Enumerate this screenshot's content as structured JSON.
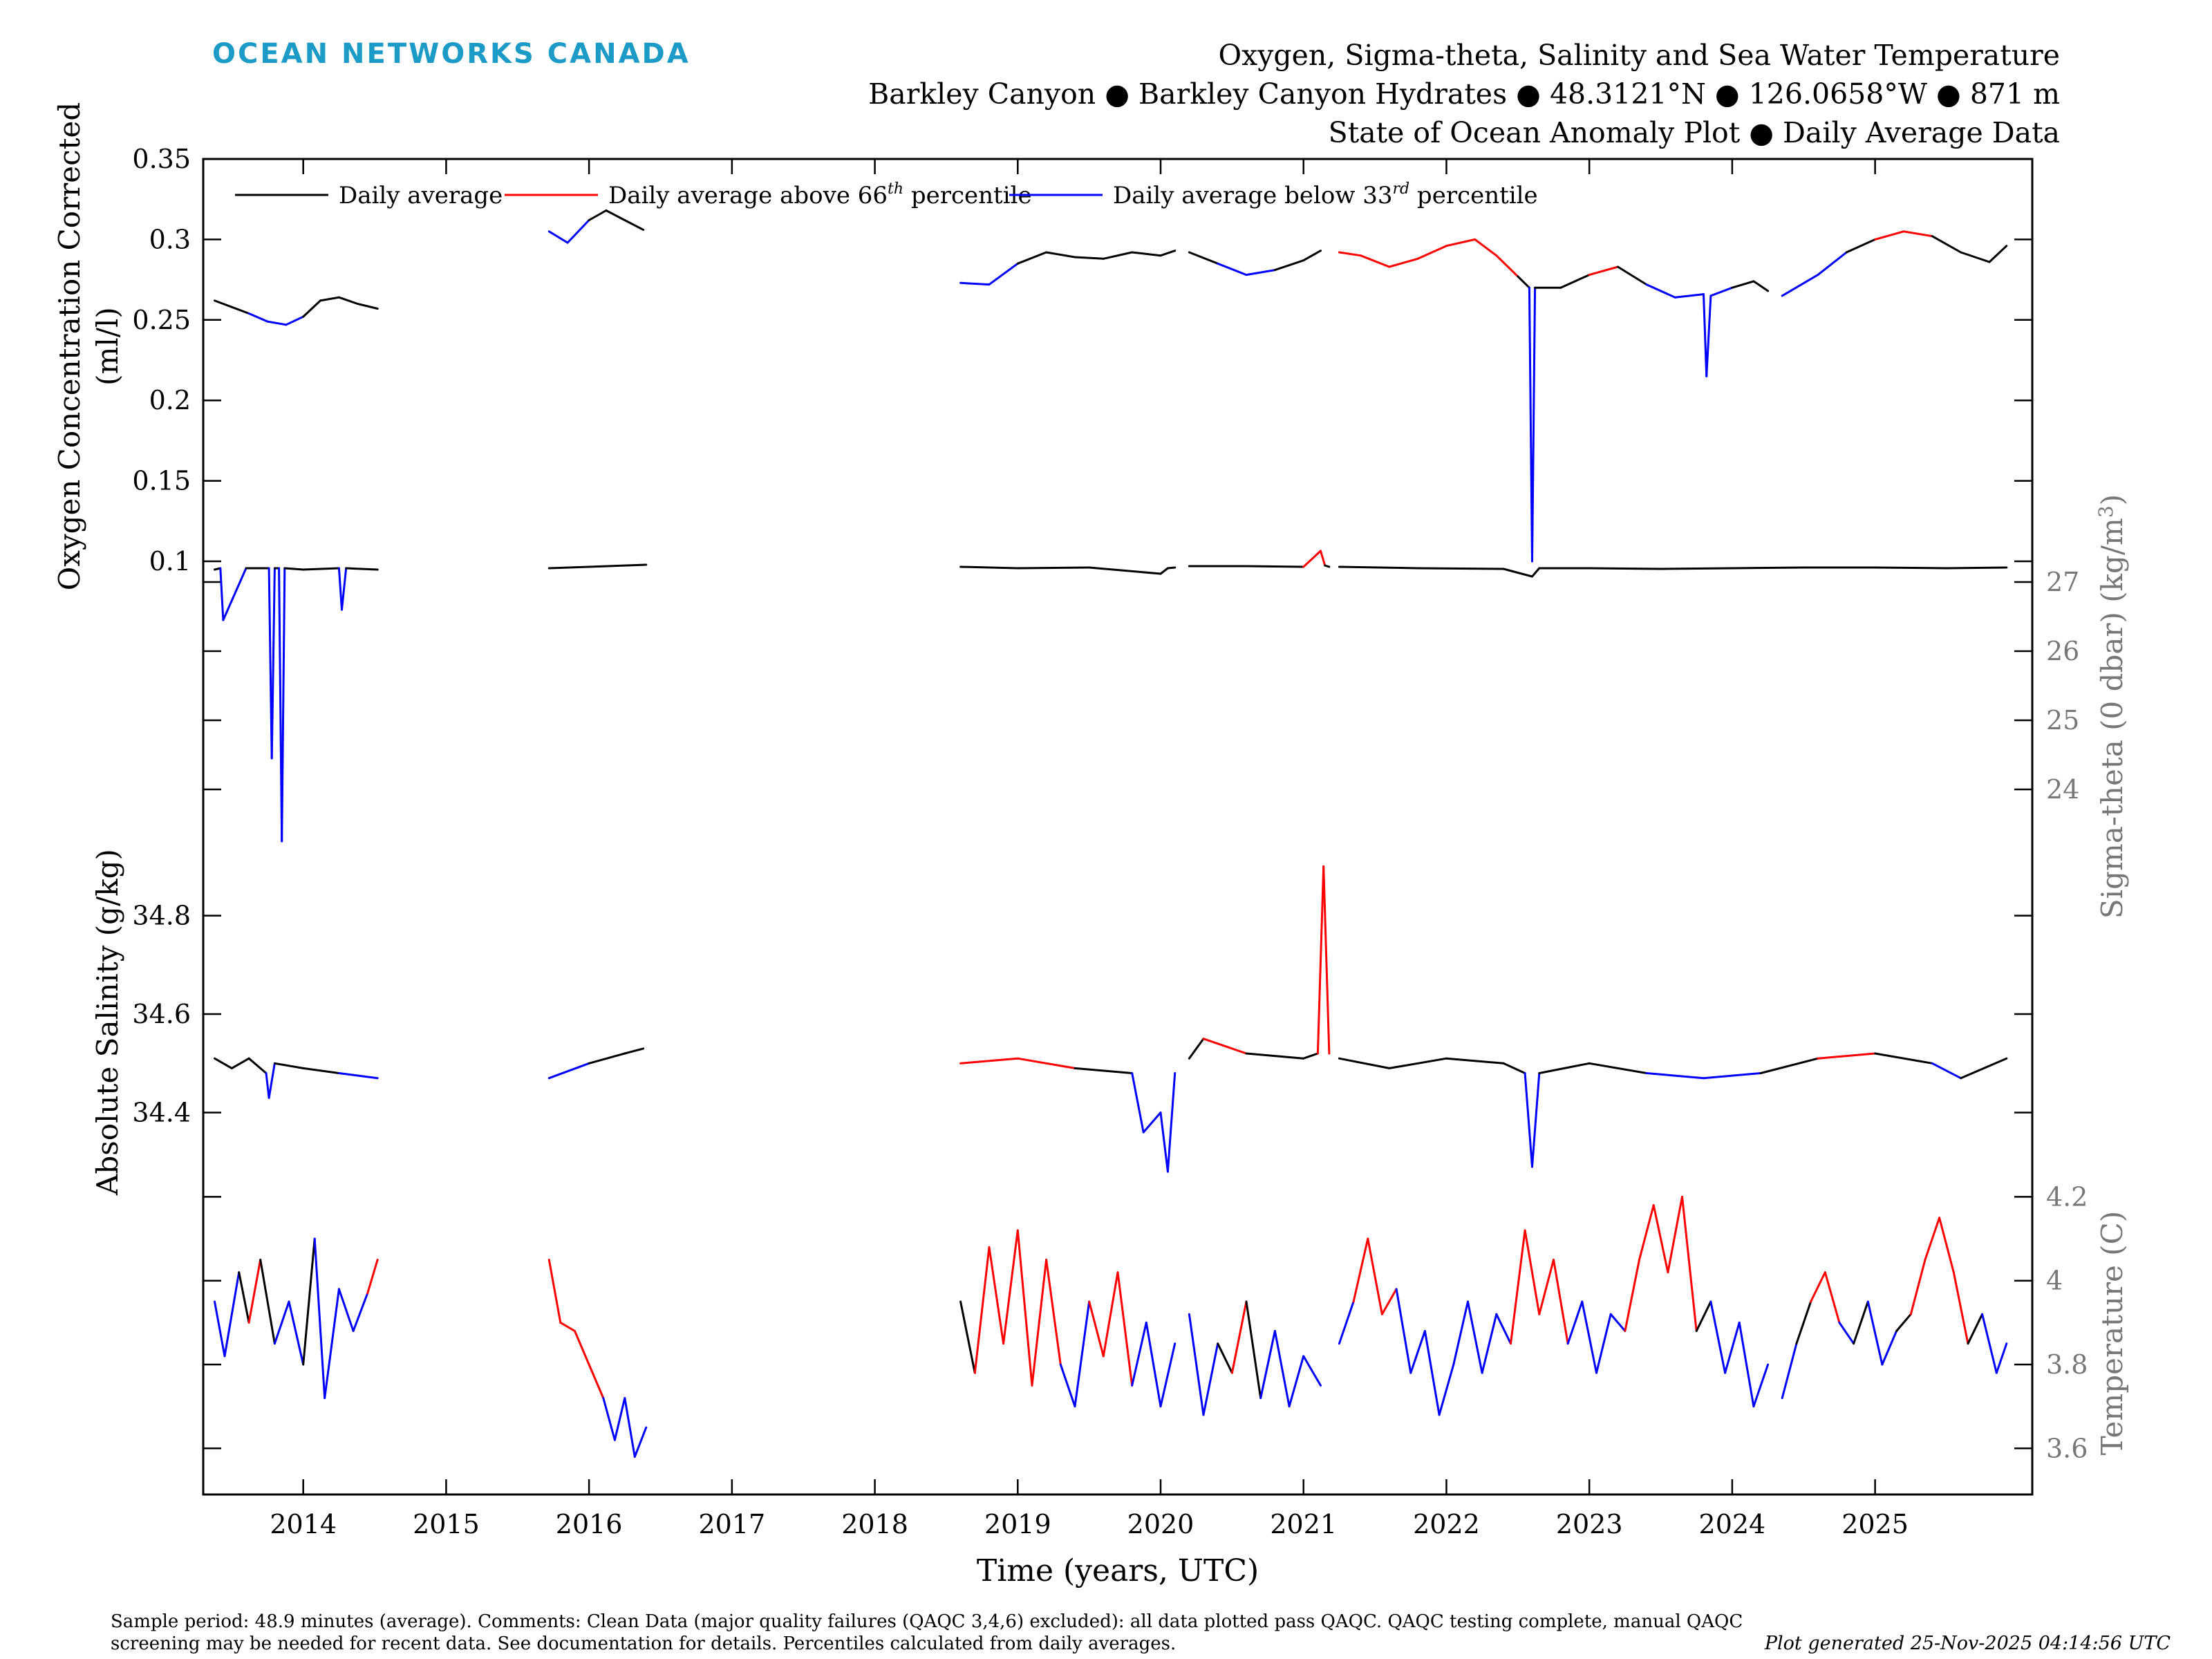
{
  "header": {
    "logo_text": "OCEAN NETWORKS CANADA",
    "title_lines": [
      "Oxygen, Sigma-theta, Salinity and Sea Water Temperature",
      "Barkley Canyon ● Barkley Canyon Hydrates ● 48.3121°N ● 126.0658°W ● 871 m",
      "State of Ocean Anomaly Plot ● Daily Average Data"
    ]
  },
  "footer": {
    "comments": "Sample period: 48.9 minutes (average). Comments: Clean Data (major quality failures (QAQC 3,4,6) excluded): all data plotted pass QAQC. QAQC testing complete, manual QAQC screening may be needed for recent data. See documentation for details. Percentiles calculated from daily averages.",
    "generated": "Plot generated 25-Nov-2025 04:14:56 UTC"
  },
  "colors": {
    "daily": "#000000",
    "above": "#ff0000",
    "below": "#0000ff",
    "axis_gray": "#777777",
    "logo": "#1c9bc7"
  },
  "chart_data": {
    "type": "line",
    "xlabel": "Time (years, UTC)",
    "x_ticks": [
      "2014",
      "2015",
      "2016",
      "2017",
      "2018",
      "2019",
      "2020",
      "2021",
      "2022",
      "2023",
      "2024",
      "2025"
    ],
    "xlim": [
      2013.3,
      2026.1
    ],
    "legend": {
      "placement": "top-left",
      "entries": [
        {
          "series": "daily",
          "text": "Daily average"
        },
        {
          "series": "above",
          "text": "Daily average above 66",
          "sup": "th",
          "after": " percentile"
        },
        {
          "series": "below",
          "text": "Daily average below 33",
          "sup": "rd",
          "after": " percentile"
        }
      ]
    },
    "panels": [
      {
        "id": "oxygen",
        "ylabel_lines": [
          "Oxygen Concentration Corrected",
          "(ml/l)"
        ],
        "label_side": "left",
        "ticks": [
          "0.1",
          "0.15",
          "0.2",
          "0.25",
          "0.3",
          "0.35"
        ],
        "ylim": [
          0.1,
          0.35
        ],
        "segments": [
          {
            "x": [
              2013.38,
              2013.5,
              2013.62,
              2013.75,
              2013.88,
              2014.0,
              2014.12,
              2014.25,
              2014.38,
              2014.52
            ],
            "y": [
              0.262,
              0.258,
              0.254,
              0.249,
              0.247,
              0.252,
              0.262,
              0.264,
              0.26,
              0.257
            ]
          },
          {
            "x": [
              2015.72,
              2015.85,
              2016.0,
              2016.12,
              2016.25,
              2016.38
            ],
            "y": [
              0.305,
              0.298,
              0.312,
              0.318,
              0.312,
              0.306
            ]
          },
          {
            "x": [
              2018.6,
              2018.8,
              2019.0,
              2019.2,
              2019.4,
              2019.6,
              2019.8,
              2020.0,
              2020.1
            ],
            "y": [
              0.273,
              0.272,
              0.285,
              0.292,
              0.289,
              0.288,
              0.292,
              0.29,
              0.293
            ]
          },
          {
            "x": [
              2020.2,
              2020.4,
              2020.6,
              2020.8,
              2021.0,
              2021.12
            ],
            "y": [
              0.292,
              0.285,
              0.278,
              0.281,
              0.287,
              0.293
            ]
          },
          {
            "x": [
              2021.25,
              2021.4,
              2021.6,
              2021.8,
              2022.0,
              2022.2,
              2022.35,
              2022.5,
              2022.58,
              2022.6,
              2022.62,
              2022.8,
              2023.0,
              2023.2,
              2023.4,
              2023.6,
              2023.8,
              2023.82,
              2023.85,
              2024.0,
              2024.15,
              2024.25
            ],
            "y": [
              0.292,
              0.29,
              0.283,
              0.288,
              0.296,
              0.3,
              0.29,
              0.277,
              0.27,
              0.1,
              0.27,
              0.27,
              0.278,
              0.283,
              0.272,
              0.264,
              0.266,
              0.215,
              0.265,
              0.27,
              0.274,
              0.268
            ]
          },
          {
            "x": [
              2024.35,
              2024.6,
              2024.8,
              2025.0,
              2025.2,
              2025.4,
              2025.6,
              2025.8,
              2025.92
            ],
            "y": [
              0.265,
              0.278,
              0.292,
              0.3,
              0.305,
              0.302,
              0.292,
              0.286,
              0.296
            ]
          }
        ]
      },
      {
        "id": "sigma",
        "ylabel_lines": [
          "Sigma-theta (0 dbar) (kg/m",
          "3",
          ")"
        ],
        "label_side": "right",
        "ticks": [
          "24",
          "25",
          "26",
          "27"
        ],
        "ylim": [
          23.1,
          27.3
        ],
        "segments": [
          {
            "x": [
              2013.38,
              2013.42,
              2013.44,
              2013.6,
              2013.76,
              2013.78,
              2013.8,
              2013.83,
              2013.85,
              2013.87,
              2014.0,
              2014.25,
              2014.27,
              2014.3,
              2014.52
            ],
            "y": [
              27.18,
              27.2,
              26.45,
              27.2,
              27.2,
              24.45,
              27.2,
              27.2,
              23.25,
              27.2,
              27.18,
              27.2,
              26.6,
              27.2,
              27.18
            ]
          },
          {
            "x": [
              2015.72,
              2016.0,
              2016.4
            ],
            "y": [
              27.2,
              27.22,
              27.25
            ]
          },
          {
            "x": [
              2018.6,
              2019.0,
              2019.5,
              2020.0,
              2020.05,
              2020.1
            ],
            "y": [
              27.22,
              27.2,
              27.21,
              27.12,
              27.2,
              27.21
            ]
          },
          {
            "x": [
              2020.2,
              2020.6,
              2021.0,
              2021.12,
              2021.15,
              2021.18
            ],
            "y": [
              27.23,
              27.23,
              27.22,
              27.45,
              27.24,
              27.22
            ]
          },
          {
            "x": [
              2021.25,
              2021.8,
              2022.4,
              2022.6,
              2022.65,
              2023.0,
              2023.5,
              2024.0,
              2024.5,
              2025.0,
              2025.5,
              2025.92
            ],
            "y": [
              27.22,
              27.2,
              27.19,
              27.08,
              27.2,
              27.2,
              27.19,
              27.2,
              27.21,
              27.21,
              27.2,
              27.21
            ]
          }
        ]
      },
      {
        "id": "salinity",
        "ylabel_lines": [
          "Absolute Salinity (g/kg)"
        ],
        "label_side": "left",
        "ticks": [
          "34.4",
          "34.6",
          "34.8"
        ],
        "ylim": [
          34.28,
          34.93
        ],
        "segments": [
          {
            "x": [
              2013.38,
              2013.5,
              2013.62,
              2013.74,
              2013.76,
              2013.8,
              2014.0,
              2014.25,
              2014.52
            ],
            "y": [
              34.51,
              34.49,
              34.51,
              34.48,
              34.43,
              34.5,
              34.49,
              34.48,
              34.47
            ]
          },
          {
            "x": [
              2015.72,
              2016.0,
              2016.25,
              2016.38
            ],
            "y": [
              34.47,
              34.5,
              34.52,
              34.53
            ]
          },
          {
            "x": [
              2018.6,
              2019.0,
              2019.4,
              2019.8,
              2019.88,
              2020.0,
              2020.05,
              2020.1
            ],
            "y": [
              34.5,
              34.51,
              34.49,
              34.48,
              34.36,
              34.4,
              34.28,
              34.48
            ]
          },
          {
            "x": [
              2020.2,
              2020.3,
              2020.6,
              2021.0,
              2021.1,
              2021.14,
              2021.18
            ],
            "y": [
              34.51,
              34.55,
              34.52,
              34.51,
              34.52,
              34.9,
              34.52
            ]
          },
          {
            "x": [
              2021.25,
              2021.6,
              2022.0,
              2022.4,
              2022.55,
              2022.6,
              2022.65,
              2023.0,
              2023.4,
              2023.8,
              2024.2,
              2024.6,
              2025.0,
              2025.4,
              2025.6,
              2025.92
            ],
            "y": [
              34.51,
              34.49,
              34.51,
              34.5,
              34.48,
              34.29,
              34.48,
              34.5,
              34.48,
              34.47,
              34.48,
              34.51,
              34.52,
              34.5,
              34.47,
              34.51
            ]
          }
        ]
      },
      {
        "id": "temperature",
        "ylabel_lines": [
          "Temperature (C)"
        ],
        "label_side": "right",
        "ticks": [
          "3.6",
          "3.8",
          "4",
          "4.2"
        ],
        "ylim": [
          3.49,
          4.26
        ],
        "segments": [
          {
            "x": [
              2013.38,
              2013.45,
              2013.55,
              2013.62,
              2013.7,
              2013.8,
              2013.9,
              2014.0,
              2014.08,
              2014.15,
              2014.25,
              2014.35,
              2014.45,
              2014.52
            ],
            "y": [
              3.95,
              3.82,
              4.02,
              3.9,
              4.05,
              3.85,
              3.95,
              3.8,
              4.1,
              3.72,
              3.98,
              3.88,
              3.97,
              4.05
            ]
          },
          {
            "x": [
              2015.72,
              2015.8,
              2015.9,
              2016.0,
              2016.1,
              2016.18,
              2016.25,
              2016.32,
              2016.4
            ],
            "y": [
              4.05,
              3.9,
              3.88,
              3.8,
              3.72,
              3.62,
              3.72,
              3.58,
              3.65
            ]
          },
          {
            "x": [
              2018.6,
              2018.7,
              2018.8,
              2018.9,
              2019.0,
              2019.1,
              2019.2,
              2019.3,
              2019.4,
              2019.5,
              2019.6,
              2019.7,
              2019.8,
              2019.9,
              2020.0,
              2020.1
            ],
            "y": [
              3.95,
              3.78,
              4.08,
              3.85,
              4.12,
              3.75,
              4.05,
              3.8,
              3.7,
              3.95,
              3.82,
              4.02,
              3.75,
              3.9,
              3.7,
              3.85
            ]
          },
          {
            "x": [
              2020.2,
              2020.3,
              2020.4,
              2020.5,
              2020.6,
              2020.7,
              2020.8,
              2020.9,
              2021.0,
              2021.12
            ],
            "y": [
              3.92,
              3.68,
              3.85,
              3.78,
              3.95,
              3.72,
              3.88,
              3.7,
              3.82,
              3.75
            ]
          },
          {
            "x": [
              2021.25,
              2021.35,
              2021.45,
              2021.55,
              2021.65,
              2021.75,
              2021.85,
              2021.95,
              2022.05,
              2022.15,
              2022.25,
              2022.35,
              2022.45,
              2022.55,
              2022.65,
              2022.75,
              2022.85,
              2022.95,
              2023.05,
              2023.15,
              2023.25,
              2023.35,
              2023.45,
              2023.55,
              2023.65,
              2023.75,
              2023.85,
              2023.95,
              2024.05,
              2024.15,
              2024.25
            ],
            "y": [
              3.85,
              3.95,
              4.1,
              3.92,
              3.98,
              3.78,
              3.88,
              3.68,
              3.8,
              3.95,
              3.78,
              3.92,
              3.85,
              4.12,
              3.92,
              4.05,
              3.85,
              3.95,
              3.78,
              3.92,
              3.88,
              4.05,
              4.18,
              4.02,
              4.2,
              3.88,
              3.95,
              3.78,
              3.9,
              3.7,
              3.8
            ]
          },
          {
            "x": [
              2024.35,
              2024.45,
              2024.55,
              2024.65,
              2024.75,
              2024.85,
              2024.95,
              2025.05,
              2025.15,
              2025.25,
              2025.35,
              2025.45,
              2025.55,
              2025.65,
              2025.75,
              2025.85,
              2025.92
            ],
            "y": [
              3.72,
              3.85,
              3.95,
              4.02,
              3.9,
              3.85,
              3.95,
              3.8,
              3.88,
              3.92,
              4.05,
              4.15,
              4.02,
              3.85,
              3.92,
              3.78,
              3.85
            ]
          }
        ]
      }
    ]
  }
}
